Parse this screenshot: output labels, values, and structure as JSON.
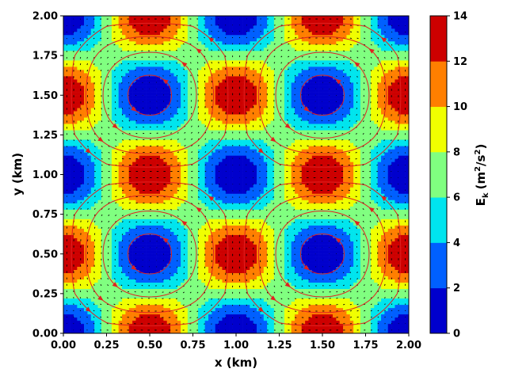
{
  "chart_data": {
    "type": "heatmap",
    "title": "",
    "xlabel": "x (km)",
    "ylabel": "y (km)",
    "xlim": [
      0,
      2
    ],
    "ylim": [
      0,
      2
    ],
    "xticks": [
      "0.00",
      "0.25",
      "0.50",
      "0.75",
      "1.00",
      "1.25",
      "1.50",
      "1.75",
      "2.00"
    ],
    "yticks": [
      "0.00",
      "0.25",
      "0.50",
      "0.75",
      "1.00",
      "1.25",
      "1.50",
      "1.75",
      "2.00"
    ],
    "field": "kinetic energy of a 2D cellular (Taylor-Green type) vortex flow with 1 km cell spacing",
    "levels": [
      0,
      2,
      4,
      6,
      8,
      10,
      12,
      14
    ],
    "level_colors": [
      "#0000cd",
      "#0060ff",
      "#00e5ee",
      "#80ff80",
      "#f0ff00",
      "#ff7f00",
      "#cd0000"
    ],
    "vortex_centers": [
      {
        "x": 0.5,
        "y": 1.5,
        "value": 0
      },
      {
        "x": 1.5,
        "y": 1.5,
        "value": 0
      },
      {
        "x": 0.5,
        "y": 0.5,
        "value": 0
      },
      {
        "x": 1.5,
        "y": 0.5,
        "value": 0
      }
    ],
    "energy_maxima": [
      {
        "x": 0.5,
        "y": 2.0,
        "value": 14
      },
      {
        "x": 1.5,
        "y": 2.0,
        "value": 14
      },
      {
        "x": 0.0,
        "y": 1.5,
        "value": 14
      },
      {
        "x": 1.0,
        "y": 1.5,
        "value": 14
      },
      {
        "x": 2.0,
        "y": 1.5,
        "value": 14
      },
      {
        "x": 0.5,
        "y": 1.0,
        "value": 14
      },
      {
        "x": 1.5,
        "y": 1.0,
        "value": 14
      },
      {
        "x": 0.0,
        "y": 0.5,
        "value": 14
      },
      {
        "x": 1.0,
        "y": 0.5,
        "value": 14
      },
      {
        "x": 2.0,
        "y": 0.5,
        "value": 14
      },
      {
        "x": 0.5,
        "y": 0.0,
        "value": 14
      },
      {
        "x": 1.5,
        "y": 0.0,
        "value": 14
      }
    ],
    "overlays": [
      "quiver (black arrows)",
      "streamlines (red)"
    ],
    "colorbar": {
      "label": "E_k (m^2/s^2)",
      "label_main": "E",
      "label_sub": "k",
      "label_units": "(m",
      "label_power": "2",
      "label_mid": "/s",
      "label_power2": "2",
      "label_close": ")",
      "ticks": [
        "0",
        "2",
        "4",
        "6",
        "8",
        "10",
        "12",
        "14"
      ]
    }
  }
}
